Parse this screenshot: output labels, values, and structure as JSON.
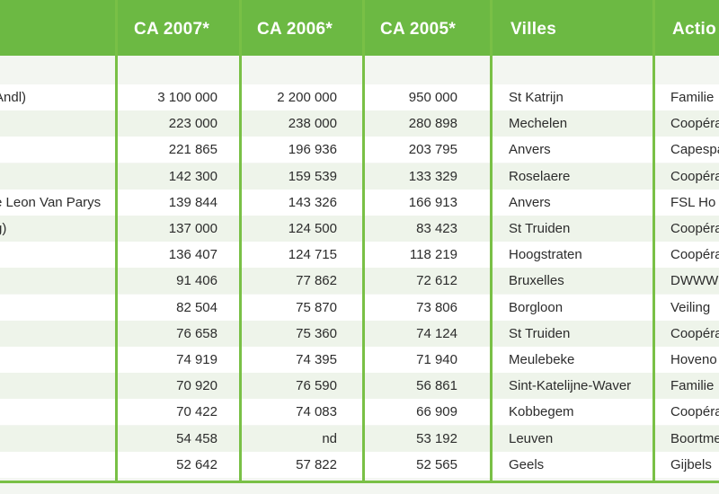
{
  "headers": [
    "",
    "CA 2007*",
    "CA 2006*",
    "CA 2005*",
    "Villes",
    "Actio"
  ],
  "rows": [
    {
      "name": "Andl)",
      "ca2007": "3 100 000",
      "ca2006": "2 200 000",
      "ca2005": "950 000",
      "ville": "St Katrijn",
      "action": "Familie"
    },
    {
      "name": "",
      "ca2007": "223 000",
      "ca2006": "238 000",
      "ca2005": "280 898",
      "ville": "Mechelen",
      "action": "Coopéra"
    },
    {
      "name": "",
      "ca2007": "221 865",
      "ca2006": "196 936",
      "ca2005": "203 795",
      "ville": "Anvers",
      "action": "Capespa"
    },
    {
      "name": "",
      "ca2007": "142 300",
      "ca2006": "159 539",
      "ca2005": "133 329",
      "ville": "Roselaere",
      "action": "Coopéra"
    },
    {
      "name": "e Leon Van Parys",
      "ca2007": "139 844",
      "ca2006": "143 326",
      "ca2005": "166 913",
      "ville": "Anvers",
      "action": "FSL Ho"
    },
    {
      "name": "g)",
      "ca2007": "137 000",
      "ca2006": "124 500",
      "ca2005": "83 423",
      "ville": "St Truiden",
      "action": "Coopéra"
    },
    {
      "name": "",
      "ca2007": "136 407",
      "ca2006": "124 715",
      "ca2005": "118 219",
      "ville": "Hoogstraten",
      "action": "Coopéra"
    },
    {
      "name": "",
      "ca2007": "91 406",
      "ca2006": "77 862",
      "ca2005": "72 612",
      "ville": "Bruxelles",
      "action": "DWWW"
    },
    {
      "name": "",
      "ca2007": "82 504",
      "ca2006": "75 870",
      "ca2005": "73 806",
      "ville": "Borgloon",
      "action": "Veiling"
    },
    {
      "name": "",
      "ca2007": "76 658",
      "ca2006": "75 360",
      "ca2005": "74 124",
      "ville": "St Truiden",
      "action": "Coopéra"
    },
    {
      "name": "",
      "ca2007": "74 919",
      "ca2006": "74 395",
      "ca2005": "71 940",
      "ville": "Meulebeke",
      "action": "Hoveno"
    },
    {
      "name": "",
      "ca2007": "70 920",
      "ca2006": "76 590",
      "ca2005": "56 861",
      "ville": "Sint-Katelijne-Waver",
      "action": "Familie"
    },
    {
      "name": "",
      "ca2007": "70 422",
      "ca2006": "74 083",
      "ca2005": "66 909",
      "ville": "Kobbegem",
      "action": "Coopéra"
    },
    {
      "name": "",
      "ca2007": "54 458",
      "ca2006": "nd",
      "ca2005": "53 192",
      "ville": "Leuven",
      "action": "Boortme"
    },
    {
      "name": "",
      "ca2007": "52 642",
      "ca2006": "57 822",
      "ca2005": "52 565",
      "ville": "Geels",
      "action": "Gijbels"
    }
  ],
  "colors": {
    "header_bg": "#6cb943",
    "separator": "#79c046",
    "band_even": "#ffffff",
    "band_odd": "#eef4ea"
  }
}
